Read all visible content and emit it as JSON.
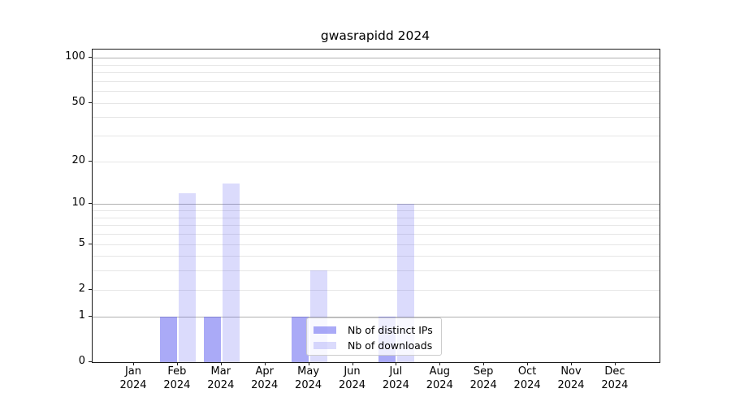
{
  "chart_data": {
    "type": "bar",
    "title": "gwasrapidd 2024",
    "x": [
      "Jan",
      "Feb",
      "Mar",
      "Apr",
      "May",
      "Jun",
      "Jul",
      "Aug",
      "Sep",
      "Oct",
      "Nov",
      "Dec"
    ],
    "x_year": "2024",
    "series": [
      {
        "name": "Nb of distinct IPs",
        "color": "rgba(85,85,240,0.5)",
        "color_hex_on_white": "#a8a8f8",
        "values": [
          0,
          1,
          1,
          0,
          1,
          0,
          1,
          0,
          0,
          0,
          0,
          0
        ]
      },
      {
        "name": "Nb of downloads",
        "color": "rgba(85,85,240,0.21)",
        "color_hex_on_white": "#dcdcf8",
        "values": [
          0,
          12,
          14,
          0,
          3,
          0,
          10,
          0,
          0,
          0,
          0,
          0
        ]
      }
    ],
    "y_scale": "log1p",
    "y_tick_values": [
      0,
      1,
      2,
      5,
      10,
      20,
      50,
      100
    ],
    "y_tick_labels": [
      "0",
      "1",
      "2",
      "5",
      "10",
      "20",
      "50",
      "100"
    ],
    "grid_major": [
      1,
      10,
      100
    ],
    "grid_minor": [
      2,
      3,
      4,
      5,
      6,
      7,
      8,
      9,
      20,
      30,
      40,
      50,
      60,
      70,
      80,
      90
    ],
    "ylim": [
      0,
      113
    ],
    "grid": "on",
    "legend_position": "lower center-right inside plot"
  },
  "colors": {
    "grid_major": "#b0b0b0",
    "grid_minor": "#e6e6e6",
    "spine": "#1a1a1a",
    "background": "#ffffff"
  }
}
